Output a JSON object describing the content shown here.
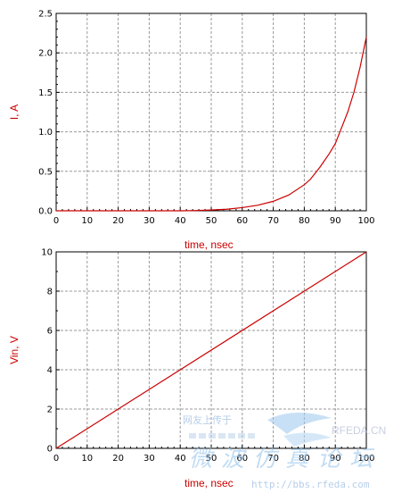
{
  "chart_data": [
    {
      "type": "line",
      "xlabel": "time, nsec",
      "ylabel": "I, A",
      "xlim": [
        0,
        100
      ],
      "ylim": [
        0,
        2.5
      ],
      "grid": true,
      "x_ticks": [
        "0",
        "10",
        "20",
        "30",
        "40",
        "50",
        "60",
        "70",
        "80",
        "90",
        "100"
      ],
      "y_ticks": [
        "0.0",
        "0.5",
        "1.0",
        "1.5",
        "2.0",
        "2.5"
      ],
      "series": [
        {
          "x": [
            0,
            40,
            45,
            50,
            55,
            60,
            65,
            70,
            75,
            80,
            82,
            85,
            88,
            90,
            92,
            94,
            96,
            98,
            100
          ],
          "y": [
            0,
            0.0,
            0.003,
            0.01,
            0.02,
            0.04,
            0.07,
            0.12,
            0.2,
            0.33,
            0.4,
            0.55,
            0.72,
            0.85,
            1.05,
            1.25,
            1.5,
            1.82,
            2.2
          ],
          "color": "#cc0000"
        }
      ]
    },
    {
      "type": "line",
      "xlabel": "time, nsec",
      "ylabel": "Vin, V",
      "xlim": [
        0,
        100
      ],
      "ylim": [
        0,
        10
      ],
      "grid": true,
      "x_ticks": [
        "0",
        "10",
        "20",
        "30",
        "40",
        "50",
        "60",
        "70",
        "80",
        "90",
        "100"
      ],
      "y_ticks": [
        "0",
        "2",
        "4",
        "6",
        "8",
        "10"
      ],
      "series": [
        {
          "x": [
            0,
            100
          ],
          "y": [
            0,
            10
          ],
          "color": "#cc0000"
        }
      ]
    }
  ],
  "watermark": {
    "line1": "网友上传于",
    "logo": "RFEDA.CN",
    "chinese": "微波仿真论坛",
    "url": "http://bbs.rfeda.com"
  }
}
